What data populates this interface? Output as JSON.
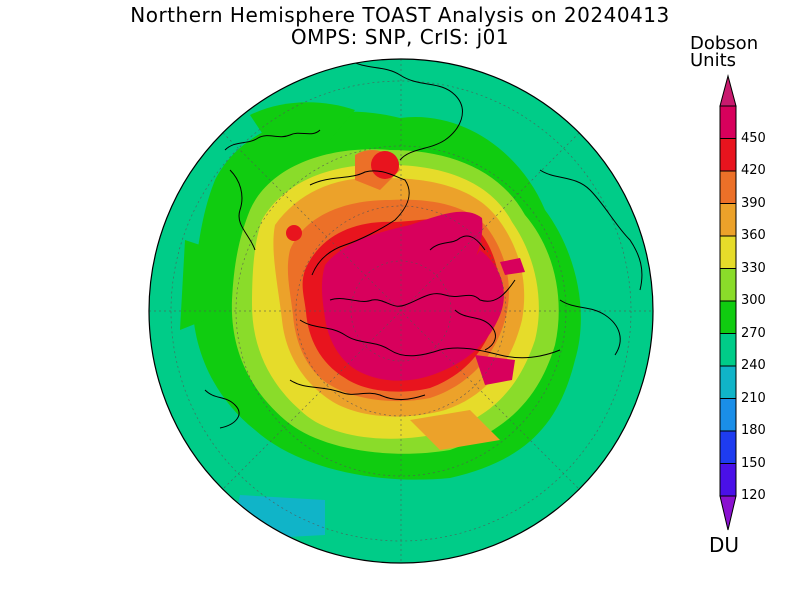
{
  "title_line1": "Northern Hemisphere TOAST Analysis on 20240413",
  "title_line2": "OMPS: SNP, CrIS: j01",
  "colorbar": {
    "unit_line1": "Dobson",
    "unit_line2": "Units",
    "unit_short": "DU",
    "levels": [
      "120",
      "150",
      "180",
      "210",
      "240",
      "270",
      "300",
      "330",
      "360",
      "390",
      "420",
      "450"
    ],
    "colors": [
      "#7a10d8",
      "#4a10e8",
      "#1e3cf0",
      "#1a8ee8",
      "#10b4c8",
      "#00cc88",
      "#10cc10",
      "#8adc2a",
      "#e6dc2a",
      "#eca22a",
      "#ec7028",
      "#e8141e",
      "#d8005c"
    ],
    "top_cap_color": "#c81a6e",
    "bottom_cap_color": "#8a10d0"
  }
}
